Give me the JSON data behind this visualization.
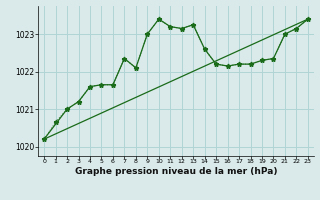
{
  "background_color": "#daeaea",
  "grid_color": "#b0d4d4",
  "line_color": "#1a6b1a",
  "xlabel": "Graphe pression niveau de la mer (hPa)",
  "xlim": [
    -0.5,
    23.5
  ],
  "ylim": [
    1019.75,
    1023.75
  ],
  "yticks": [
    1020,
    1021,
    1022,
    1023
  ],
  "xticks": [
    0,
    1,
    2,
    3,
    4,
    5,
    6,
    7,
    8,
    9,
    10,
    11,
    12,
    13,
    14,
    15,
    16,
    17,
    18,
    19,
    20,
    21,
    22,
    23
  ],
  "series1_x": [
    0,
    1,
    2,
    3,
    4,
    5,
    6,
    7,
    8,
    9,
    10,
    11,
    12,
    13,
    14,
    15,
    16,
    17,
    18,
    19,
    20,
    21,
    22,
    23
  ],
  "series1_y": [
    1020.2,
    1020.65,
    1021.0,
    1021.2,
    1021.6,
    1021.65,
    1021.65,
    1022.35,
    1022.1,
    1023.0,
    1023.4,
    1023.2,
    1023.15,
    1023.25,
    1022.6,
    1022.2,
    1022.15,
    1022.2,
    1022.2,
    1022.3,
    1022.35,
    1023.0,
    1023.15,
    1023.4
  ],
  "series2_x": [
    0,
    2,
    3,
    4,
    5,
    6,
    7,
    8,
    9,
    10,
    11,
    12,
    13,
    14,
    15,
    16,
    17,
    18,
    19,
    20,
    21,
    22,
    23
  ],
  "series2_y": [
    1020.2,
    1021.0,
    1021.2,
    1021.6,
    1021.65,
    1021.65,
    1022.35,
    1022.1,
    1023.0,
    1023.4,
    1023.2,
    1023.15,
    1023.25,
    1022.6,
    1022.2,
    1022.15,
    1022.2,
    1022.2,
    1022.3,
    1022.35,
    1023.0,
    1023.15,
    1023.4
  ],
  "trend_x": [
    0,
    23
  ],
  "trend_y": [
    1020.2,
    1023.4
  ]
}
